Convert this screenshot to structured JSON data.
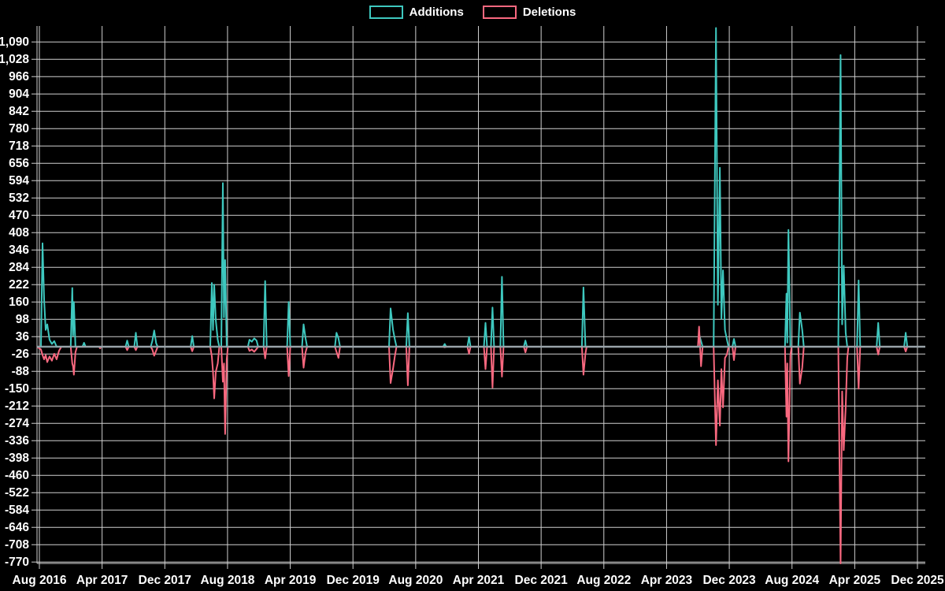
{
  "colors": {
    "background": "#000000",
    "additions": "#3ec8bf",
    "deletions": "#f9687f",
    "grid": "#cfcfcf",
    "zero_line": "#92a8ad",
    "text": "#ffffff"
  },
  "legend": {
    "items": [
      {
        "label": "Additions",
        "color": "#3ec8bf"
      },
      {
        "label": "Deletions",
        "color": "#f9687f"
      }
    ]
  },
  "chart_data": {
    "type": "line",
    "title": "",
    "xlabel": "",
    "ylabel": "",
    "grid": true,
    "legend_position": "top-center",
    "x_axis": {
      "start": "Aug 2016",
      "end": "Dec 2025",
      "months_per_tick": 8,
      "tick_labels": [
        "Aug 2016",
        "Apr 2017",
        "Dec 2017",
        "Aug 2018",
        "Apr 2019",
        "Dec 2019",
        "Aug 2020",
        "Apr 2021",
        "Dec 2021",
        "Aug 2022",
        "Apr 2023",
        "Dec 2023",
        "Aug 2024",
        "Apr 2025",
        "Dec 2025"
      ]
    },
    "y_axis": {
      "min": -770,
      "max": 1090,
      "step": 62,
      "tick_labels": [
        "1,090",
        "1,028",
        "966",
        "904",
        "842",
        "780",
        "718",
        "656",
        "594",
        "532",
        "470",
        "408",
        "346",
        "284",
        "222",
        "160",
        "98",
        "36",
        "-26",
        "-88",
        "-150",
        "-212",
        "-274",
        "-336",
        "-398",
        "-460",
        "-522",
        "-584",
        "-646",
        "-708",
        "-770"
      ]
    },
    "series": [
      {
        "name": "Additions",
        "color": "#3ec8bf"
      },
      {
        "name": "Deletions",
        "color": "#f9687f"
      }
    ],
    "points_format": "[month_offset_from_Aug_2016, additions, deletions]",
    "points": [
      [
        -0.3,
        0,
        0
      ],
      [
        0.2,
        0,
        -10
      ],
      [
        0.4,
        370,
        -30
      ],
      [
        0.6,
        170,
        -45
      ],
      [
        0.8,
        60,
        -30
      ],
      [
        1.0,
        80,
        -55
      ],
      [
        1.3,
        25,
        -35
      ],
      [
        1.6,
        10,
        -50
      ],
      [
        1.9,
        20,
        -25
      ],
      [
        2.2,
        0,
        -45
      ],
      [
        2.5,
        0,
        -15
      ],
      [
        2.8,
        0,
        0
      ],
      [
        4.0,
        0,
        0
      ],
      [
        4.2,
        210,
        -60
      ],
      [
        4.3,
        40,
        -70
      ],
      [
        4.4,
        160,
        -100
      ],
      [
        4.6,
        0,
        -20
      ],
      [
        4.8,
        0,
        0
      ],
      [
        5.5,
        0,
        0
      ],
      [
        5.7,
        14,
        0
      ],
      [
        5.9,
        0,
        0
      ],
      [
        7.6,
        0,
        0
      ],
      [
        7.75,
        0,
        -6
      ],
      [
        7.9,
        0,
        0
      ],
      [
        11.0,
        0,
        0
      ],
      [
        11.2,
        22,
        -12
      ],
      [
        11.4,
        0,
        0
      ],
      [
        12.1,
        0,
        0
      ],
      [
        12.3,
        50,
        -12
      ],
      [
        12.5,
        0,
        0
      ],
      [
        14.2,
        0,
        0
      ],
      [
        14.4,
        20,
        -10
      ],
      [
        14.65,
        58,
        -32
      ],
      [
        14.9,
        12,
        -14
      ],
      [
        15.1,
        0,
        0
      ],
      [
        19.3,
        0,
        0
      ],
      [
        19.5,
        38,
        -16
      ],
      [
        19.7,
        0,
        0
      ],
      [
        21.8,
        0,
        0
      ],
      [
        22.0,
        228,
        -35
      ],
      [
        22.15,
        60,
        -90
      ],
      [
        22.3,
        222,
        -185
      ],
      [
        22.5,
        95,
        -90
      ],
      [
        22.75,
        25,
        -60
      ],
      [
        22.95,
        0,
        0
      ],
      [
        23.2,
        0,
        0
      ],
      [
        23.4,
        585,
        -125
      ],
      [
        23.55,
        105,
        -60
      ],
      [
        23.7,
        310,
        -312
      ],
      [
        23.9,
        0,
        -45
      ],
      [
        24.05,
        0,
        0
      ],
      [
        26.6,
        0,
        0
      ],
      [
        26.8,
        25,
        -15
      ],
      [
        27.1,
        18,
        -10
      ],
      [
        27.4,
        30,
        -18
      ],
      [
        27.7,
        22,
        -8
      ],
      [
        27.9,
        0,
        0
      ],
      [
        28.6,
        0,
        0
      ],
      [
        28.8,
        235,
        -42
      ],
      [
        29.0,
        0,
        0
      ],
      [
        31.6,
        0,
        0
      ],
      [
        31.8,
        160,
        -105
      ],
      [
        32.0,
        0,
        0
      ],
      [
        33.5,
        0,
        0
      ],
      [
        33.7,
        80,
        -75
      ],
      [
        33.95,
        30,
        -20
      ],
      [
        34.15,
        0,
        0
      ],
      [
        37.7,
        0,
        0
      ],
      [
        37.9,
        50,
        -18
      ],
      [
        38.15,
        30,
        -40
      ],
      [
        38.35,
        0,
        0
      ],
      [
        44.6,
        0,
        0
      ],
      [
        44.8,
        137,
        -130
      ],
      [
        45.1,
        62,
        -80
      ],
      [
        45.35,
        25,
        -32
      ],
      [
        45.55,
        0,
        0
      ],
      [
        46.8,
        0,
        0
      ],
      [
        47.0,
        120,
        -138
      ],
      [
        47.2,
        0,
        0
      ],
      [
        51.5,
        0,
        0
      ],
      [
        51.7,
        10,
        -2
      ],
      [
        51.9,
        0,
        0
      ],
      [
        54.6,
        0,
        0
      ],
      [
        54.8,
        35,
        -25
      ],
      [
        55.0,
        0,
        0
      ],
      [
        56.7,
        0,
        0
      ],
      [
        56.9,
        85,
        -80
      ],
      [
        57.1,
        0,
        0
      ],
      [
        57.6,
        0,
        0
      ],
      [
        57.8,
        140,
        -146
      ],
      [
        58.0,
        0,
        0
      ],
      [
        58.8,
        0,
        0
      ],
      [
        59.0,
        250,
        -107
      ],
      [
        59.2,
        0,
        0
      ],
      [
        61.8,
        0,
        0
      ],
      [
        62.0,
        22,
        -20
      ],
      [
        62.2,
        0,
        0
      ],
      [
        69.2,
        0,
        0
      ],
      [
        69.4,
        212,
        -100
      ],
      [
        69.65,
        0,
        -25
      ],
      [
        69.8,
        0,
        0
      ],
      [
        84.0,
        0,
        0
      ],
      [
        84.15,
        45,
        72
      ],
      [
        84.4,
        20,
        -70
      ],
      [
        84.6,
        0,
        0
      ],
      [
        86.0,
        0,
        0
      ],
      [
        86.3,
        1140,
        -352
      ],
      [
        86.55,
        150,
        -120
      ],
      [
        86.8,
        640,
        -282
      ],
      [
        87.0,
        100,
        -80
      ],
      [
        87.2,
        273,
        -217
      ],
      [
        87.45,
        60,
        -40
      ],
      [
        87.7,
        25,
        -28
      ],
      [
        87.9,
        0,
        0
      ],
      [
        88.4,
        0,
        0
      ],
      [
        88.6,
        28,
        -48
      ],
      [
        88.8,
        0,
        0
      ],
      [
        95.1,
        0,
        0
      ],
      [
        95.3,
        190,
        -250
      ],
      [
        95.4,
        15,
        -60
      ],
      [
        95.55,
        418,
        -410
      ],
      [
        95.8,
        0,
        -30
      ],
      [
        95.95,
        0,
        0
      ],
      [
        96.8,
        0,
        0
      ],
      [
        97.0,
        122,
        -132
      ],
      [
        97.3,
        60,
        -75
      ],
      [
        97.5,
        0,
        0
      ],
      [
        101.9,
        0,
        0
      ],
      [
        102.2,
        1043,
        -775
      ],
      [
        102.4,
        80,
        -160
      ],
      [
        102.6,
        290,
        -370
      ],
      [
        102.85,
        50,
        -215
      ],
      [
        103.05,
        0,
        -40
      ],
      [
        103.2,
        0,
        0
      ],
      [
        104.3,
        0,
        0
      ],
      [
        104.5,
        237,
        -150
      ],
      [
        104.7,
        0,
        0
      ],
      [
        106.8,
        0,
        0
      ],
      [
        107.0,
        85,
        -28
      ],
      [
        107.2,
        0,
        0
      ],
      [
        110.3,
        0,
        0
      ],
      [
        110.5,
        50,
        -17
      ],
      [
        110.7,
        0,
        0
      ],
      [
        113.0,
        0,
        0
      ]
    ]
  }
}
